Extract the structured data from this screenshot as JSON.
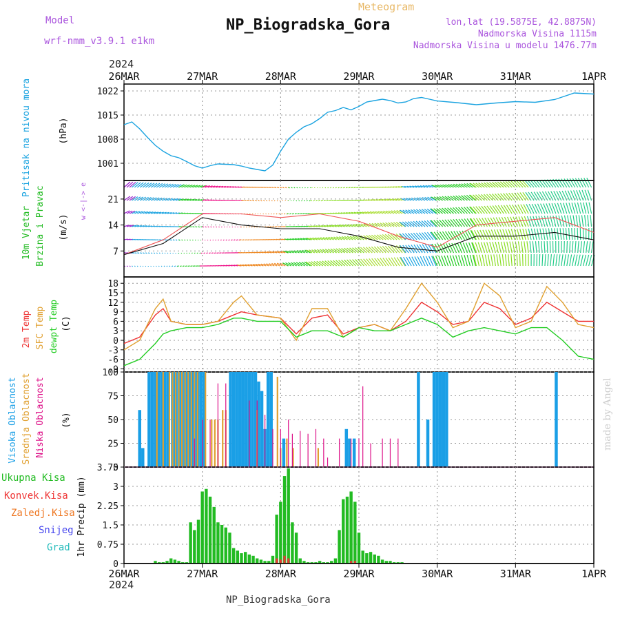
{
  "header": {
    "model_label": "Model",
    "model_name": "wrf-nmm_v3.9.1 e1km",
    "station": "NP_Biogradska_Gora",
    "product": "Meteogram",
    "lonlat": "lon,lat (19.5875E, 42.8875N)",
    "elevation": "Nadmorska Visina 1115m",
    "model_elevation": "Nadmorska Visina u modelu 1476.77m",
    "year": "2024",
    "footer_station": "NP_Biogradska_Gora",
    "credit": "made by Angel"
  },
  "colors": {
    "pressure": "#1aa3e0",
    "wind_label": "#22bb22",
    "temp2m": "#ee3333",
    "sfc": "#e0a030",
    "dewpt": "#22cc22",
    "high_cloud": "#1a9fe6",
    "mid_cloud": "#e0a030",
    "low_cloud": "#dd1188",
    "precip_total": "#22bb22",
    "precip_conv": "#ee3333",
    "legend_zaledj": "#ee7722",
    "legend_snijeg": "#4444ee",
    "legend_grad": "#22bbbb",
    "header_purple": "#aa55dd",
    "header_orange": "#e8b866"
  },
  "chart_data": [
    {
      "type": "line",
      "panel": "pressure",
      "labels": [
        "Pritisak na nivou mora",
        "(hPa)"
      ],
      "x_ticks": [
        "26MAR",
        "27MAR",
        "28MAR",
        "29MAR",
        "30MAR",
        "31MAR",
        "1APR"
      ],
      "y_ticks": [
        "1001",
        "1008",
        "1015",
        "1022"
      ],
      "ylim": [
        996,
        1024
      ],
      "grid": true,
      "series": [
        {
          "x": [
            0,
            0.1,
            0.2,
            0.3,
            0.4,
            0.5,
            0.6,
            0.7,
            0.8,
            0.9,
            1.0,
            1.1,
            1.2,
            1.3,
            1.4,
            1.5,
            1.6,
            1.7,
            1.8,
            1.9,
            2.0,
            2.1,
            2.2,
            2.3,
            2.4,
            2.5,
            2.6,
            2.7,
            2.8,
            2.9,
            3.0,
            3.1,
            3.2,
            3.3,
            3.4,
            3.5,
            3.6,
            3.7,
            3.8,
            3.9,
            4.0,
            4.25,
            4.5,
            4.75,
            5.0,
            5.25,
            5.5,
            5.75,
            6.0
          ],
          "y": [
            1012.2,
            1013.0,
            1011.0,
            1008.5,
            1006.2,
            1004.5,
            1003.2,
            1002.6,
            1001.5,
            1000.3,
            999.6,
            1000.3,
            1000.8,
            1000.7,
            1000.6,
            1000.2,
            999.6,
            999.2,
            998.8,
            1000.5,
            1004.5,
            1008.0,
            1010.0,
            1011.6,
            1012.5,
            1014.0,
            1015.8,
            1016.3,
            1017.2,
            1016.5,
            1017.5,
            1018.8,
            1019.2,
            1019.6,
            1019.2,
            1018.5,
            1018.8,
            1019.8,
            1020.1,
            1019.6,
            1019.1,
            1018.6,
            1018.0,
            1018.5,
            1018.9,
            1018.7,
            1019.5,
            1021.4,
            1021.1
          ]
        }
      ]
    },
    {
      "type": "line",
      "panel": "wind",
      "labels": [
        "10m Vjetar",
        "Brzina i Pravac",
        "(m/s)"
      ],
      "compass": "w <-|-> e",
      "y_ticks": [
        "7",
        "14",
        "21"
      ],
      "ylim": [
        0,
        26
      ],
      "grid": true,
      "series": [
        {
          "name": "speed",
          "x": [
            0,
            0.5,
            1.0,
            1.5,
            2.0,
            2.5,
            3.0,
            3.5,
            4.0,
            4.5,
            5.0,
            5.5,
            6.0
          ],
          "y": [
            6,
            9,
            16,
            14,
            13,
            13,
            11,
            8,
            7,
            11,
            11,
            12,
            10
          ]
        },
        {
          "name": "gust",
          "x": [
            0,
            0.5,
            1.0,
            1.5,
            2.0,
            2.5,
            3.0,
            3.5,
            4.0,
            4.5,
            5.0,
            5.5,
            6.0
          ],
          "y": [
            6,
            10,
            17,
            17,
            16,
            17,
            15,
            11,
            8,
            14,
            15,
            16,
            12
          ]
        }
      ]
    },
    {
      "type": "line",
      "panel": "temperature",
      "labels": [
        "2m Temp",
        "SFC Temp",
        "dewpt Temp",
        "(C)"
      ],
      "y_ticks": [
        "-9",
        "-6",
        "-3",
        "0",
        "3",
        "6",
        "9",
        "12",
        "15",
        "18"
      ],
      "ylim": [
        -10,
        20
      ],
      "grid": true,
      "series": [
        {
          "name": "2m Temp",
          "x": [
            0,
            0.2,
            0.4,
            0.5,
            0.6,
            0.8,
            1.0,
            1.2,
            1.4,
            1.5,
            1.7,
            2.0,
            2.2,
            2.4,
            2.6,
            2.8,
            3.0,
            3.2,
            3.4,
            3.6,
            3.8,
            4.0,
            4.2,
            4.4,
            4.6,
            4.8,
            5.0,
            5.2,
            5.4,
            5.6,
            5.8,
            6.0
          ],
          "y": [
            -1,
            1,
            8,
            10,
            6,
            5,
            5,
            6,
            8,
            9,
            8,
            7,
            2,
            7,
            8,
            2,
            4,
            5,
            3,
            6,
            12,
            9,
            5,
            6,
            12,
            10,
            5,
            7,
            12,
            9,
            6,
            6
          ]
        },
        {
          "name": "SFC Temp",
          "x": [
            0,
            0.2,
            0.4,
            0.5,
            0.6,
            0.8,
            1.0,
            1.2,
            1.4,
            1.5,
            1.7,
            2.0,
            2.2,
            2.4,
            2.6,
            2.8,
            3.0,
            3.2,
            3.4,
            3.6,
            3.8,
            4.0,
            4.2,
            4.4,
            4.6,
            4.8,
            5.0,
            5.2,
            5.4,
            5.6,
            5.8,
            6.0
          ],
          "y": [
            -3,
            0,
            10,
            13,
            6,
            5,
            5,
            6,
            12,
            14,
            8,
            7,
            0,
            10,
            10,
            1,
            4,
            5,
            3,
            10,
            18,
            12,
            4,
            6,
            18,
            14,
            4,
            6,
            17,
            12,
            5,
            4
          ]
        },
        {
          "name": "dewpt Temp",
          "x": [
            0,
            0.2,
            0.4,
            0.5,
            0.6,
            0.8,
            1.0,
            1.2,
            1.4,
            1.5,
            1.7,
            2.0,
            2.2,
            2.4,
            2.6,
            2.8,
            3.0,
            3.2,
            3.4,
            3.6,
            3.8,
            4.0,
            4.2,
            4.4,
            4.6,
            4.8,
            5.0,
            5.2,
            5.4,
            5.6,
            5.8,
            6.0
          ],
          "y": [
            -8,
            -6,
            -1,
            2,
            3,
            4,
            4,
            5,
            7,
            7,
            6,
            6,
            1,
            3,
            3,
            1,
            4,
            3,
            3,
            5,
            7,
            5,
            1,
            3,
            4,
            3,
            2,
            4,
            4,
            0,
            -5,
            -6
          ]
        }
      ]
    },
    {
      "type": "bar",
      "panel": "clouds",
      "labels": [
        "Visoka Oblacnost",
        "Srednja Oblacnost",
        "Niska Oblacnost",
        "(%)"
      ],
      "y_ticks": [
        "0",
        "25",
        "50",
        "75",
        "100"
      ],
      "ylim": [
        0,
        100
      ],
      "series": [
        {
          "name": "Visoka Oblacnost",
          "points": [
            [
              0.2,
              60
            ],
            [
              0.24,
              20
            ],
            [
              0.32,
              100
            ],
            [
              0.36,
              100
            ],
            [
              0.4,
              100
            ],
            [
              0.44,
              100
            ],
            [
              0.48,
              100
            ],
            [
              0.52,
              100
            ],
            [
              0.56,
              100
            ],
            [
              0.62,
              100
            ],
            [
              0.66,
              100
            ],
            [
              0.7,
              100
            ],
            [
              0.74,
              100
            ],
            [
              0.78,
              100
            ],
            [
              0.82,
              100
            ],
            [
              0.86,
              100
            ],
            [
              0.9,
              100
            ],
            [
              0.94,
              100
            ],
            [
              0.98,
              100
            ],
            [
              1.02,
              100
            ],
            [
              1.36,
              100
            ],
            [
              1.4,
              100
            ],
            [
              1.44,
              100
            ],
            [
              1.48,
              100
            ],
            [
              1.52,
              100
            ],
            [
              1.56,
              100
            ],
            [
              1.6,
              100
            ],
            [
              1.64,
              100
            ],
            [
              1.68,
              100
            ],
            [
              1.72,
              90
            ],
            [
              1.76,
              80
            ],
            [
              1.8,
              40
            ],
            [
              1.84,
              100
            ],
            [
              1.88,
              100
            ],
            [
              2.04,
              30
            ],
            [
              2.84,
              40
            ],
            [
              2.88,
              30
            ],
            [
              2.94,
              30
            ],
            [
              3.76,
              100
            ],
            [
              3.88,
              50
            ],
            [
              3.96,
              100
            ],
            [
              4.0,
              100
            ],
            [
              4.04,
              100
            ],
            [
              4.08,
              100
            ],
            [
              4.12,
              100
            ],
            [
              5.52,
              100
            ]
          ]
        },
        {
          "name": "Srednja Oblacnost",
          "points": [
            [
              0.42,
              100
            ],
            [
              0.5,
              100
            ],
            [
              0.58,
              100
            ],
            [
              0.62,
              100
            ],
            [
              0.66,
              100
            ],
            [
              0.7,
              100
            ],
            [
              0.74,
              100
            ],
            [
              0.78,
              100
            ],
            [
              0.82,
              100
            ],
            [
              0.86,
              100
            ],
            [
              0.9,
              100
            ],
            [
              0.94,
              100
            ],
            [
              1.04,
              100
            ],
            [
              1.12,
              50
            ],
            [
              1.16,
              50
            ],
            [
              1.2,
              50
            ],
            [
              1.26,
              60
            ],
            [
              1.3,
              60
            ],
            [
              1.7,
              60
            ],
            [
              1.96,
              95
            ],
            [
              2.0,
              20
            ],
            [
              2.08,
              30
            ],
            [
              2.16,
              20
            ],
            [
              2.48,
              20
            ]
          ]
        },
        {
          "name": "Niska Oblacnost",
          "points": [
            [
              0.9,
              30
            ],
            [
              1.0,
              50
            ],
            [
              1.1,
              50
            ],
            [
              1.2,
              88
            ],
            [
              1.3,
              88
            ],
            [
              1.6,
              70
            ],
            [
              1.7,
              70
            ],
            [
              1.8,
              55
            ],
            [
              1.9,
              40
            ],
            [
              2.0,
              40
            ],
            [
              2.1,
              50
            ],
            [
              2.15,
              35
            ],
            [
              2.25,
              38
            ],
            [
              2.35,
              35
            ],
            [
              2.45,
              40
            ],
            [
              2.55,
              30
            ],
            [
              2.6,
              10
            ],
            [
              2.75,
              30
            ],
            [
              2.9,
              30
            ],
            [
              3.0,
              30
            ],
            [
              3.05,
              85
            ],
            [
              3.15,
              25
            ],
            [
              3.3,
              30
            ],
            [
              3.4,
              30
            ],
            [
              3.5,
              30
            ]
          ]
        }
      ]
    },
    {
      "type": "bar",
      "panel": "precip",
      "labels": [
        "Ukupna Kisa",
        "Konvek.Kisa",
        "Zaledj.Kisa",
        "Snijeg",
        "Grad",
        "1hr Precip (mm)"
      ],
      "y_ticks": [
        "0",
        "0.75",
        "1.5",
        "2.25",
        "3",
        "3.75"
      ],
      "ylim": [
        0,
        3.75
      ],
      "series": [
        {
          "name": "Ukupna Kisa",
          "x": [
            0.4,
            0.45,
            0.5,
            0.55,
            0.6,
            0.65,
            0.7,
            0.75,
            0.8,
            0.85,
            0.9,
            0.95,
            1.0,
            1.05,
            1.1,
            1.15,
            1.2,
            1.25,
            1.3,
            1.35,
            1.4,
            1.45,
            1.5,
            1.55,
            1.6,
            1.65,
            1.7,
            1.75,
            1.8,
            1.85,
            1.9,
            1.95,
            2.0,
            2.05,
            2.1,
            2.15,
            2.2,
            2.25,
            2.3,
            2.35,
            2.4,
            2.45,
            2.5,
            2.55,
            2.6,
            2.65,
            2.7,
            2.75,
            2.8,
            2.85,
            2.9,
            2.95,
            3.0,
            3.05,
            3.1,
            3.15,
            3.2,
            3.25,
            3.3,
            3.35,
            3.4,
            3.45,
            3.5,
            3.55,
            3.6,
            3.65,
            3.7
          ],
          "y": [
            0.1,
            0.05,
            0.05,
            0.1,
            0.2,
            0.15,
            0.1,
            0.05,
            0.05,
            1.6,
            1.3,
            1.7,
            2.8,
            2.9,
            2.6,
            2.2,
            1.6,
            1.5,
            1.4,
            1.2,
            0.6,
            0.5,
            0.4,
            0.45,
            0.35,
            0.3,
            0.2,
            0.15,
            0.1,
            0.1,
            0.3,
            1.9,
            2.4,
            3.4,
            3.7,
            1.6,
            1.2,
            0.2,
            0.1,
            0.05,
            0.05,
            0.05,
            0.1,
            0.05,
            0.05,
            0.1,
            0.2,
            1.3,
            2.5,
            2.6,
            2.8,
            2.4,
            1.2,
            0.5,
            0.4,
            0.45,
            0.35,
            0.3,
            0.15,
            0.1,
            0.1,
            0.05,
            0.05,
            0.05,
            0.0,
            0.0,
            0.0
          ]
        },
        {
          "name": "Konvek.Kisa",
          "x": [
            1.95,
            2.0,
            2.05,
            2.1,
            2.9,
            2.95
          ],
          "y": [
            0.2,
            0.15,
            0.3,
            0.2,
            0.1,
            0.1
          ]
        }
      ]
    }
  ]
}
